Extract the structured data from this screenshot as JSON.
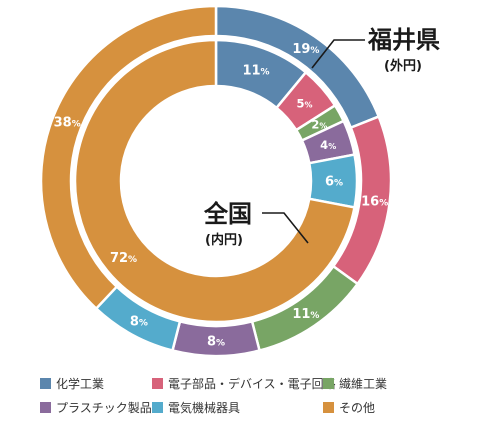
{
  "chart_data": {
    "type": "donut",
    "categories": [
      "化学工業",
      "電子部品・デバイス・電子回路",
      "繊維工業",
      "プラスチック製品",
      "電気機械器具",
      "その他"
    ],
    "colors": [
      "#5b86ad",
      "#d7627a",
      "#78a565",
      "#8a6b9c",
      "#54abcc",
      "#d6913e"
    ],
    "series": [
      {
        "name": "福井県",
        "subtitle": "(外円)",
        "ring": "outer",
        "values": [
          19,
          16,
          11,
          8,
          8,
          38
        ]
      },
      {
        "name": "全国",
        "subtitle": "(内円)",
        "ring": "inner",
        "values": [
          11,
          5,
          2,
          4,
          6,
          72
        ]
      }
    ],
    "unit": "%",
    "legend_position": "bottom"
  }
}
